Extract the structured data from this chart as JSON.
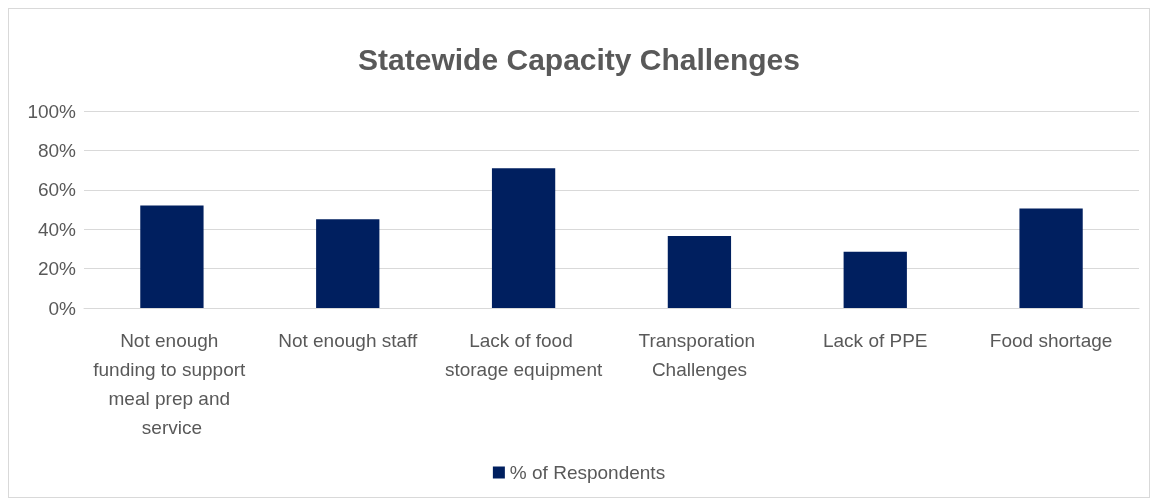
{
  "chart_data": {
    "type": "bar",
    "title": "Statewide Capacity Challenges",
    "categories": [
      "Not enough funding to support meal prep and service",
      "Not enough staff",
      "Lack of food storage equipment",
      "Transporation Challenges",
      "Lack of PPE",
      "Food shortage"
    ],
    "series": [
      {
        "name": "% of Respondents",
        "color": "#001f5f",
        "values": [
          52,
          45,
          71,
          36.5,
          28.5,
          50.5
        ]
      }
    ],
    "ylim": [
      0,
      100
    ],
    "yticks": [
      {
        "value": 0,
        "label": "0%"
      },
      {
        "value": 20,
        "label": "20%"
      },
      {
        "value": 40,
        "label": "40%"
      },
      {
        "value": 60,
        "label": "60%"
      },
      {
        "value": 80,
        "label": "80%"
      },
      {
        "value": 100,
        "label": "100%"
      }
    ],
    "grid": "y",
    "legend": "bottom"
  }
}
